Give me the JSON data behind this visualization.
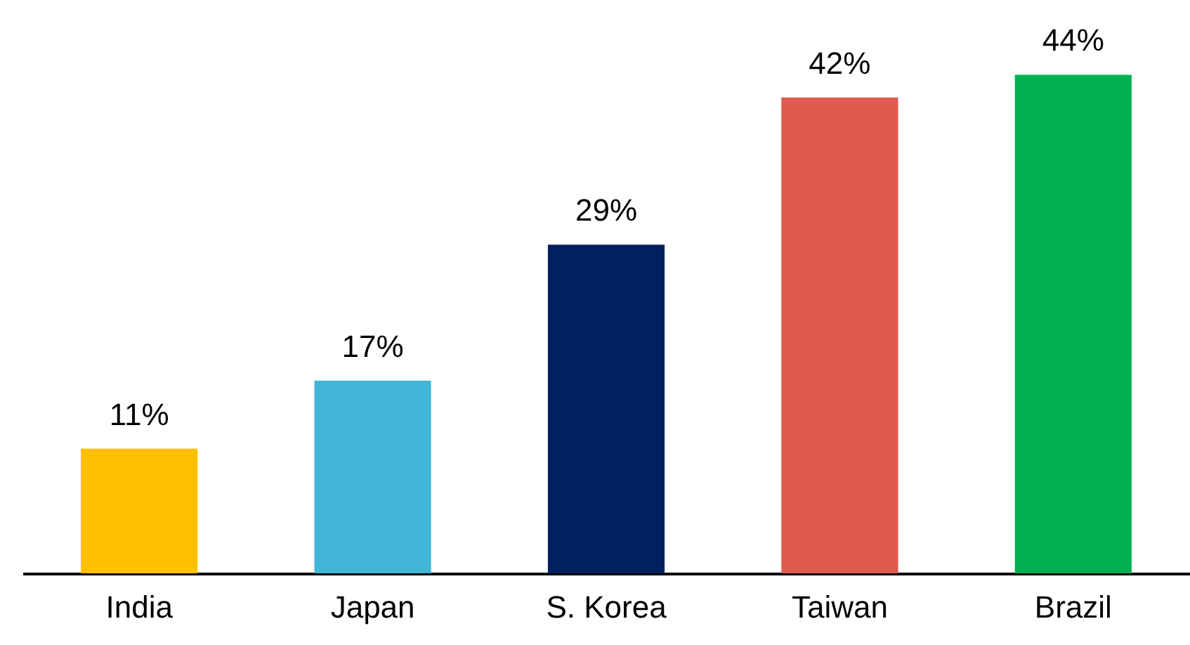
{
  "chart_data": {
    "type": "bar",
    "categories": [
      "India",
      "Japan",
      "S. Korea",
      "Taiwan",
      "Brazil"
    ],
    "values": [
      11,
      17,
      29,
      42,
      44
    ],
    "colors": [
      "#ffc000",
      "#41b6d6",
      "#002060",
      "#e05a4f",
      "#00b050"
    ],
    "value_labels": [
      "11%",
      "17%",
      "29%",
      "42%",
      "44%"
    ]
  }
}
